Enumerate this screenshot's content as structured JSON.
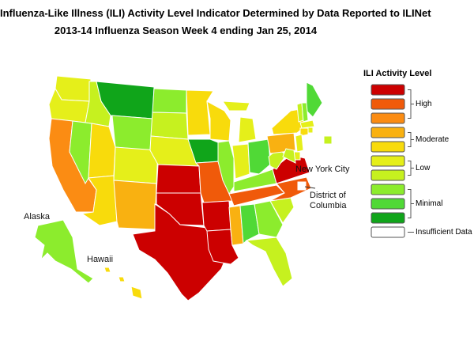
{
  "title": {
    "line1": "Influenza-Like Illness (ILI) Activity Level Indicator Determined by Data Reported to ILINet",
    "line2": "2013-14  Influenza Season Week  4 ending Jan 25, 2014"
  },
  "legend": {
    "title": "ILI Activity Level",
    "levels": [
      {
        "level": 10,
        "color": "#cc0000"
      },
      {
        "level": 9,
        "color": "#f05a0a"
      },
      {
        "level": 8,
        "color": "#fb8c13"
      },
      {
        "level": 7,
        "color": "#f9b111"
      },
      {
        "level": 6,
        "color": "#f8db0c"
      },
      {
        "level": 5,
        "color": "#e5ef1a"
      },
      {
        "level": 4,
        "color": "#c6f11f"
      },
      {
        "level": 3,
        "color": "#8cec2d"
      },
      {
        "level": 2,
        "color": "#50d936"
      },
      {
        "level": 1,
        "color": "#10a51a"
      },
      {
        "level": 0,
        "color": "#ffffff"
      }
    ],
    "groups": [
      {
        "label": "High",
        "levels": [
          10,
          9,
          8
        ]
      },
      {
        "label": "Moderate",
        "levels": [
          7,
          6
        ]
      },
      {
        "label": "Low",
        "levels": [
          5,
          4
        ]
      },
      {
        "label": "Minimal",
        "levels": [
          3,
          2,
          1
        ]
      },
      {
        "label": "Insufficient Data",
        "levels": [
          0
        ]
      }
    ]
  },
  "map": {
    "labels": {
      "new_york_city": "New York City",
      "dc": "District of\nColumbia",
      "alaska": "Alaska",
      "hawaii": "Hawaii"
    },
    "states": {
      "WA": 5,
      "OR": 5,
      "CA": 8,
      "NV": 3,
      "ID": 4,
      "MT": 1,
      "WY": 3,
      "UT": 6,
      "AZ": 6,
      "CO": 5,
      "NM": 7,
      "ND": 3,
      "SD": 4,
      "NE": 5,
      "KS": 10,
      "OK": 10,
      "TX": 10,
      "MN": 6,
      "IA": 1,
      "MO": 9,
      "AR": 10,
      "LA": 10,
      "WI": 6,
      "IL": 3,
      "MI": 5,
      "IN": 5,
      "OH": 2,
      "KY": 3,
      "TN": 9,
      "MS": 7,
      "AL": 2,
      "GA": 3,
      "FL": 4,
      "SC": 4,
      "NC": 9,
      "VA": 10,
      "WV": 4,
      "PA": 7,
      "NY": 6,
      "ME": 2,
      "VT": 4,
      "NH": 3,
      "MA": 5,
      "CT": 6,
      "RI": 5,
      "NJ": 5,
      "DE": 5,
      "MD": 4,
      "AK": 3,
      "HI": 6,
      "NYC": 4,
      "DC": 0
    }
  }
}
